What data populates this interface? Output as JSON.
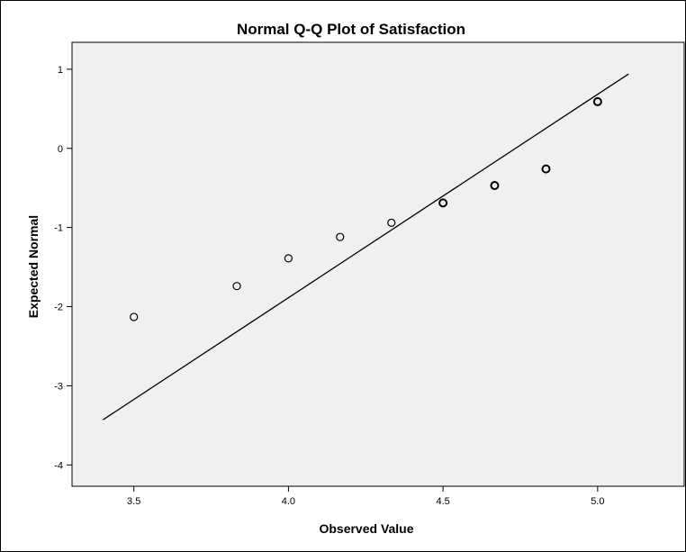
{
  "chart_data": {
    "type": "scatter",
    "title": "Normal Q-Q Plot of Satisfaction",
    "xlabel": "Observed Value",
    "ylabel": "Expected Normal",
    "xlim": [
      3.3,
      5.28
    ],
    "ylim": [
      -4.27,
      1.34
    ],
    "x_ticks": [
      3.5,
      4.0,
      4.5,
      5.0
    ],
    "x_tick_labels": [
      "3.5",
      "4.0",
      "4.5",
      "5.0"
    ],
    "y_ticks": [
      1,
      0,
      -1,
      -2,
      -3,
      -4
    ],
    "y_tick_labels": [
      "1",
      "0",
      "-1",
      "-2",
      "-3",
      "-4"
    ],
    "points": [
      {
        "x": 3.5,
        "y": -2.13
      },
      {
        "x": 3.833,
        "y": -1.74
      },
      {
        "x": 4.0,
        "y": -1.39
      },
      {
        "x": 4.167,
        "y": -1.12
      },
      {
        "x": 4.333,
        "y": -0.94
      },
      {
        "x": 4.5,
        "y": -0.69
      },
      {
        "x": 4.667,
        "y": -0.47
      },
      {
        "x": 4.833,
        "y": -0.26
      },
      {
        "x": 5.0,
        "y": 0.59
      }
    ],
    "reference_line": {
      "x1": 3.4,
      "y1": -3.43,
      "x2": 5.1,
      "y2": 0.94
    },
    "grid": false,
    "legend": false,
    "colors": {
      "plot_background": "#f0f0f0",
      "line": "#000000",
      "marker": "#000000"
    }
  }
}
